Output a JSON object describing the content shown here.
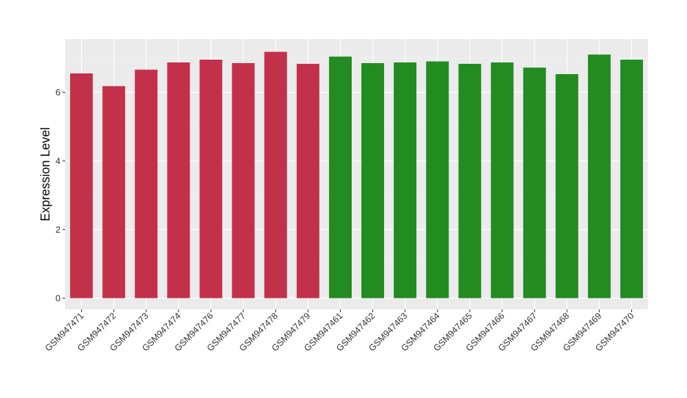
{
  "chart_data": {
    "type": "bar",
    "title": "",
    "xlabel": "",
    "ylabel": "Expression Level",
    "ylim": [
      -0.33,
      7.55
    ],
    "yticks": [
      0,
      2,
      4,
      6
    ],
    "grid": true,
    "legend": "none",
    "colors": {
      "panel_background": "#ebebeb",
      "grid_major": "#ffffff",
      "group_1": "#c3304a",
      "group_2": "#228b22"
    },
    "categories": [
      "GSM947471",
      "GSM947472",
      "GSM947473",
      "GSM947474",
      "GSM947476",
      "GSM947477",
      "GSM947478",
      "GSM947479",
      "GSM947461",
      "GSM947462",
      "GSM947463",
      "GSM947464",
      "GSM947465",
      "GSM947466",
      "GSM947467",
      "GSM947468",
      "GSM947469",
      "GSM947470"
    ],
    "values": [
      6.55,
      6.18,
      6.66,
      6.87,
      6.95,
      6.85,
      7.18,
      6.83,
      7.04,
      6.85,
      6.87,
      6.9,
      6.83,
      6.87,
      6.72,
      6.53,
      7.1,
      6.95
    ],
    "bar_colors": [
      "#c3304a",
      "#c3304a",
      "#c3304a",
      "#c3304a",
      "#c3304a",
      "#c3304a",
      "#c3304a",
      "#c3304a",
      "#228b22",
      "#228b22",
      "#228b22",
      "#228b22",
      "#228b22",
      "#228b22",
      "#228b22",
      "#228b22",
      "#228b22",
      "#228b22"
    ]
  }
}
